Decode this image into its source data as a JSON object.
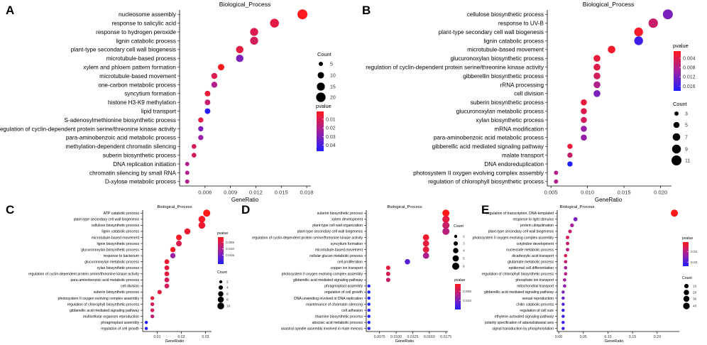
{
  "chart_data": [
    {
      "panel": "A",
      "type": "scatter",
      "title": "Biological_Process",
      "xlabel": "GeneRatio",
      "xlim": [
        0.003,
        0.0185
      ],
      "xticks": [
        0.006,
        0.009,
        0.012,
        0.015,
        0.018
      ],
      "xtick_labels": [
        "0.006",
        "0.009",
        "0.012",
        "0.015",
        "0.018"
      ],
      "terms": [
        "nucleosome assembly",
        "response to salicylic acid",
        "response to hydrogen peroxide",
        "lignin catabolic process",
        "plant-type secondary cell wall biogenesis",
        "microtubule-based process",
        "xylem and phloem pattern formation",
        "microtubule-based movement",
        "one-carbon metabolic process",
        "syncytium formation",
        "histone H3-K9 methylation",
        "lipid transport",
        "S-adenosylmethionine biosynthetic process",
        "regulation of cyclin-dependent protein serine/threonine kinase activity",
        "para-aminobenzoic acid metabolic process",
        "methylation-dependent chromatin silencing",
        "suberin biosynthetic process",
        "DNA replication initiation",
        "chromatin silencing by small RNA",
        "D-xylose metabolic process"
      ],
      "gene_ratio": [
        0.0175,
        0.0142,
        0.0118,
        0.0118,
        0.0101,
        0.0101,
        0.0079,
        0.0071,
        0.0071,
        0.0063,
        0.0063,
        0.0063,
        0.0055,
        0.0055,
        0.0055,
        0.0047,
        0.0047,
        0.0039,
        0.0039,
        0.0039
      ],
      "count": [
        22,
        18,
        15,
        15,
        13,
        13,
        10,
        9,
        9,
        8,
        8,
        8,
        7,
        7,
        7,
        6,
        6,
        5,
        5,
        5
      ],
      "pvalue": [
        0.002,
        0.008,
        0.01,
        0.012,
        0.008,
        0.03,
        0.002,
        0.01,
        0.02,
        0.006,
        0.015,
        0.045,
        0.008,
        0.03,
        0.025,
        0.012,
        0.012,
        0.02,
        0.02,
        0.02
      ],
      "size_legend": {
        "title": "Count",
        "values": [
          5,
          10,
          15,
          20
        ]
      },
      "color_legend": {
        "title": "pvalue",
        "ticks": [
          0.01,
          0.02,
          0.03,
          0.04
        ],
        "labels": [
          "0.01",
          "0.02",
          "0.03",
          "0.04"
        ],
        "min": 0.001,
        "max": 0.047
      }
    },
    {
      "panel": "B",
      "type": "scatter",
      "title": "Biological_Process",
      "xlabel": "GeneRatio",
      "xlim": [
        0.0045,
        0.0215
      ],
      "xticks": [
        0.005,
        0.01,
        0.015,
        0.02
      ],
      "xtick_labels": [
        "0.005",
        "0.010",
        "0.015",
        "0.020"
      ],
      "terms": [
        "cellulose biosynthetic process",
        "response to UV-B",
        "plant-type secondary cell wall biogenesis",
        "lignin catabolic process",
        "microtubule-based movement",
        "glucuronoxylan biosynthetic process",
        "regulation of cyclin-dependent protein serine/threonine kinase activity",
        "gibberellin biosynthetic process",
        "rRNA processing",
        "cell division",
        "suberin biosynthetic process",
        "glucuronoxylan metabolic process",
        "xylan biosynthetic process",
        "mRNA modification",
        "para-aminobenzoic acid metabolic process",
        "gibberellic acid mediated signaling pathway",
        "malate transport",
        "DNA endoreduplication",
        "photosystem II oxygen evolving complex assembly",
        "regulation of chlorophyll biosynthetic process"
      ],
      "gene_ratio": [
        0.021,
        0.019,
        0.017,
        0.017,
        0.0133,
        0.0113,
        0.0113,
        0.0113,
        0.0113,
        0.0113,
        0.0095,
        0.0095,
        0.0095,
        0.0095,
        0.0095,
        0.0076,
        0.0076,
        0.0076,
        0.0057,
        0.0057
      ],
      "count": [
        11,
        10,
        9,
        9,
        7,
        6,
        6,
        6,
        6,
        6,
        5,
        5,
        5,
        5,
        5,
        4,
        4,
        4,
        3,
        3
      ],
      "pvalue": [
        0.012,
        0.006,
        0.002,
        0.016,
        0.002,
        0.003,
        0.004,
        0.005,
        0.008,
        0.012,
        0.003,
        0.004,
        0.005,
        0.01,
        0.01,
        0.003,
        0.006,
        0.018,
        0.008,
        0.008
      ],
      "size_legend": {
        "title": "Count",
        "values": [
          3,
          5,
          7,
          9,
          11
        ]
      },
      "color_legend": {
        "title": "pvalue",
        "ticks": [
          0.004,
          0.008,
          0.012,
          0.016
        ],
        "labels": [
          "0.004",
          "0.008",
          "0.012",
          "0.016"
        ],
        "min": 0.001,
        "max": 0.018
      }
    },
    {
      "panel": "C",
      "type": "scatter",
      "title": "Biological_Process",
      "xlabel": "GeneRatio",
      "xlim": [
        0.004,
        0.0325
      ],
      "xticks": [
        0.01,
        0.02,
        0.03
      ],
      "xtick_labels": [
        "0.01",
        "0.02",
        "0.03"
      ],
      "terms": [
        "ATP catabolic process",
        "plant-type secondary cell wall biogenesis",
        "cellulose biosynthetic process",
        "lignin catabolic process",
        "microtubule-based movement",
        "lignin biosynthetic process",
        "glucuronoxylan biosynthetic process",
        "response to bacterium",
        "glucuronoxylan metabolic process",
        "xylan biosynthetic process",
        "regulation of cyclin-dependent protein serine/threonine kinase activity",
        "para-aminobenzoic acid metabolic process",
        "cell division",
        "suberin biosynthetic process",
        "photosystem II oxygen evolving complex assembly",
        "regulation of chlorophyll biosynthetic process",
        "gibberellic acid mediated signaling pathway",
        "multicellular organism reproduction",
        "phragmoplast assembly",
        "regulation of cell growth"
      ],
      "gene_ratio": [
        0.0305,
        0.0285,
        0.0285,
        0.0225,
        0.019,
        0.019,
        0.0165,
        0.0165,
        0.014,
        0.014,
        0.014,
        0.014,
        0.014,
        0.011,
        0.008,
        0.008,
        0.008,
        0.008,
        0.0055,
        0.0055
      ],
      "count": [
        11,
        10,
        10,
        8,
        7,
        7,
        6,
        6,
        5,
        5,
        5,
        5,
        5,
        4,
        3,
        3,
        3,
        3,
        2,
        2
      ],
      "pvalue": [
        0.001,
        0.002,
        0.003,
        0.003,
        0.002,
        0.005,
        0.002,
        0.012,
        0.003,
        0.004,
        0.004,
        0.006,
        0.006,
        0.004,
        0.004,
        0.006,
        0.006,
        0.008,
        0.022,
        0.022
      ],
      "size_legend": {
        "title": "Count",
        "values": [
          2,
          4,
          6,
          8,
          10
        ]
      },
      "color_legend": {
        "title": "pvalue",
        "ticks": [
          0.005,
          0.01,
          0.015
        ],
        "labels": [
          "0.005",
          "0.010",
          "0.015"
        ],
        "min": 0.001,
        "max": 0.022
      }
    },
    {
      "panel": "D",
      "type": "scatter",
      "title": "Biological_Process",
      "xlabel": "GeneRatio",
      "xlim": [
        0.0055,
        0.0178
      ],
      "xticks": [
        0.0075,
        0.01,
        0.0125,
        0.015,
        0.0175
      ],
      "xtick_labels": [
        "0.0075",
        "0.0100",
        "0.0125",
        "0.0150",
        "0.0175"
      ],
      "terms": [
        "suberin biosynthetic process",
        "xylem development",
        "plant-type cell wall organization",
        "plant-type secondary cell wall biogenesis",
        "regulation of cyclin-dependent protein serine/threonine kinase activity",
        "syncytium formation",
        "microtubule-based movement",
        "cellular glucan metabolic process",
        "cell proliferation",
        "copper ion transport",
        "photosystem II oxygen evolving complex assembly",
        "gibberellic acid mediated signaling pathway",
        "phragmoplast assembly",
        "regulation of cell growth",
        "DNA unwinding involved in DNA replication",
        "maintenance of chromatin silencing",
        "cell adhesion",
        "thiamine biosynthetic process",
        "abscisic acid metabolic process",
        "anastral spindle assembly involved in male meiosis"
      ],
      "gene_ratio": [
        0.0175,
        0.0175,
        0.0175,
        0.0175,
        0.0145,
        0.0145,
        0.0145,
        0.0145,
        0.0117,
        0.0088,
        0.0088,
        0.0088,
        0.0059,
        0.0059,
        0.0059,
        0.0059,
        0.0059,
        0.0059,
        0.0059,
        0.0059
      ],
      "count": [
        6,
        6,
        6,
        6,
        5,
        5,
        5,
        5,
        4,
        3,
        3,
        3,
        2,
        2,
        2,
        2,
        2,
        2,
        2,
        2
      ],
      "pvalue": [
        0.001,
        0.003,
        0.005,
        0.006,
        0.002,
        0.003,
        0.003,
        0.007,
        0.012,
        0.003,
        0.004,
        0.005,
        0.015,
        0.015,
        0.015,
        0.015,
        0.015,
        0.015,
        0.015,
        0.015
      ],
      "size_legend": {
        "title": "Count",
        "values": [
          2,
          3,
          4,
          5,
          6
        ]
      },
      "color_legend": {
        "title": "pvalue",
        "ticks": [
          0.005,
          0.01
        ],
        "labels": [
          "0.005",
          "0.010"
        ],
        "min": 0.001,
        "max": 0.015
      }
    },
    {
      "panel": "E",
      "type": "scatter",
      "title": "Biological_Process",
      "xlabel": "GeneRatio",
      "xlim": [
        -0.003,
        0.245
      ],
      "xticks": [
        0.0,
        0.05,
        0.1,
        0.15,
        0.2
      ],
      "xtick_labels": [
        "0.00",
        "0.05",
        "0.10",
        "0.15",
        "0.20"
      ],
      "terms": [
        "regulation of transcription, DNA-templated",
        "response to light stimulus",
        "protein ubiquitination",
        "plant-type secondary cell wall biogenesis",
        "photosystem II oxygen evolving complex assembly",
        "cotyledon development",
        "nucleoside metabolic process",
        "dicarboxylic acid transport",
        "glutamate metabolic process",
        "epidermal cell differentiation",
        "regulation of chlorophyll biosynthetic process",
        "phosphate ion transport",
        "mitochondrial transport",
        "gibberellic acid mediated signaling pathway",
        "sexual reproduction",
        "chitin catabolic process",
        "regulation of cell size",
        "ethylene-activated signaling pathway",
        "polarity specification of adaxial/abaxial axis",
        "signal transduction by phosphorylation"
      ],
      "gene_ratio": [
        0.235,
        0.034,
        0.027,
        0.023,
        0.018,
        0.018,
        0.018,
        0.014,
        0.014,
        0.014,
        0.014,
        0.012,
        0.012,
        0.009,
        0.009,
        0.009,
        0.009,
        0.009,
        0.009,
        0.009
      ],
      "count": [
        50,
        8,
        6,
        5,
        4,
        4,
        4,
        3,
        3,
        3,
        3,
        3,
        3,
        2,
        2,
        2,
        2,
        2,
        2,
        2
      ],
      "pvalue": [
        0.001,
        0.016,
        0.012,
        0.008,
        0.006,
        0.008,
        0.01,
        0.006,
        0.008,
        0.012,
        0.01,
        0.012,
        0.014,
        0.016,
        0.018,
        0.02,
        0.022,
        0.022,
        0.022,
        0.022
      ],
      "size_legend": {
        "title": "Count",
        "values": [
          10,
          20,
          30,
          40
        ]
      },
      "color_legend": {
        "title": "pvalue",
        "ticks": [
          0.01,
          0.02
        ],
        "labels": [
          "0.01",
          "0.02"
        ],
        "min": 0.001,
        "max": 0.024
      }
    }
  ],
  "colors": {
    "high": "#ff1a1a",
    "mid": "#a020a0",
    "low": "#1f1fff",
    "text": "#000000",
    "tick": "#333333"
  }
}
